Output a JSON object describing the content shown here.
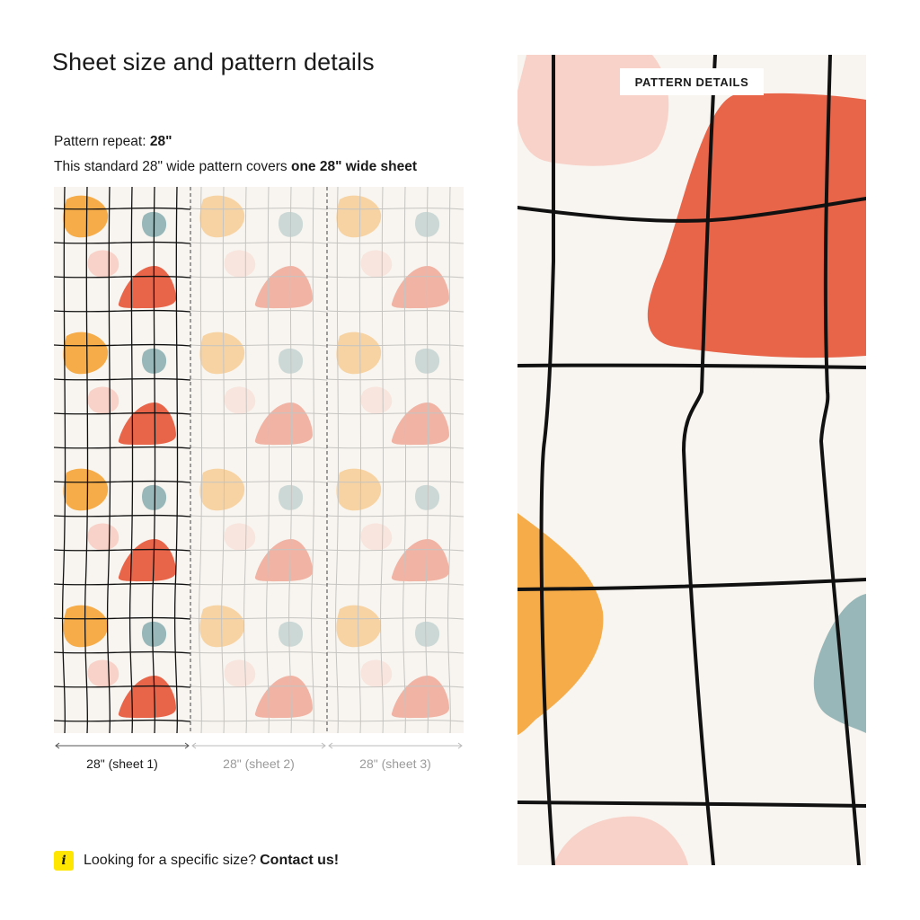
{
  "page": {
    "title": "Sheet size and pattern details"
  },
  "info": {
    "repeat_label": "Pattern repeat:",
    "repeat_value": "28\"",
    "cover_text": "This standard 28\" wide pattern covers",
    "cover_bold": "one 28\" wide sheet"
  },
  "sheets": [
    {
      "label": "28\" (sheet 1)"
    },
    {
      "label": "28\" (sheet 2)"
    },
    {
      "label": "28\" (sheet 3)"
    }
  ],
  "contact": {
    "icon_glyph": "i",
    "text": "Looking for a specific size?",
    "link": "Contact us!"
  },
  "detail": {
    "badge": "PATTERN DETAILS"
  },
  "colors": {
    "background": "#f8f5f0",
    "orange": "#f6ac48",
    "red": "#e8654a",
    "pink": "#f8d2c8",
    "teal": "#98b7b8",
    "grid": "#111111",
    "accent_yellow": "#ffe600"
  }
}
